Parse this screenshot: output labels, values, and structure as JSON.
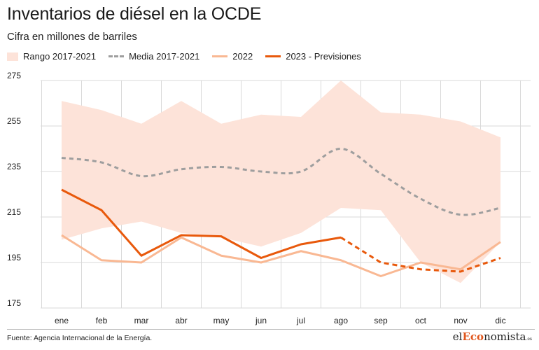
{
  "header": {
    "title": "Inventarios de diésel en la OCDE",
    "subtitle": "Cifra en millones de barriles"
  },
  "legend": {
    "band_label": "Rango 2017-2021",
    "mean_label": "Media 2017-2021",
    "y2022_label": "2022",
    "y2023_label": "2023 - Previsiones"
  },
  "colors": {
    "band": "#fde3d9",
    "mean": "#9e9e9e",
    "y2022": "#f9b893",
    "y2023": "#e8590c",
    "grid": "#d9d9d9",
    "axis": "#555555"
  },
  "footer": {
    "source": "Fuente: Agencia Internacional de la Energía.",
    "logo_pre": "el",
    "logo_hl": "Eco",
    "logo_post": "nomista",
    "logo_suffix": ".es"
  },
  "chart_data": {
    "type": "line",
    "title": "Inventarios de diésel en la OCDE",
    "ylabel": "Cifra en millones de barriles",
    "xlabel": "",
    "categories": [
      "ene",
      "feb",
      "mar",
      "abr",
      "may",
      "jun",
      "jul",
      "ago",
      "sep",
      "oct",
      "nov",
      "dic"
    ],
    "yticks": [
      275,
      255,
      235,
      215,
      195,
      175
    ],
    "ylim": [
      175,
      275
    ],
    "grid": true,
    "legend_position": "top-left",
    "range_band": {
      "name": "Rango 2017-2021",
      "x": [
        0,
        1,
        2,
        3,
        4,
        5,
        6,
        7,
        8,
        9,
        10,
        11
      ],
      "upper": [
        266,
        262,
        256,
        266,
        256,
        260,
        259,
        275,
        261,
        260,
        257,
        250
      ],
      "lower": [
        205,
        210,
        213,
        208,
        206,
        202,
        208,
        219,
        218,
        195,
        186,
        204
      ]
    },
    "series": [
      {
        "name": "Media 2017-2021",
        "style": "dashed",
        "x": [
          0,
          1,
          2,
          3,
          4,
          5,
          6,
          7,
          8,
          9,
          10,
          11
        ],
        "values": [
          241,
          239,
          233,
          236,
          237,
          235,
          235,
          245,
          234,
          223,
          216,
          219
        ]
      },
      {
        "name": "2022",
        "style": "solid",
        "x": [
          0,
          1,
          2,
          3,
          4,
          5,
          6,
          7,
          8,
          9,
          10,
          11
        ],
        "values": [
          207,
          196,
          195,
          206,
          198,
          195,
          200,
          196,
          189,
          195,
          192,
          204
        ]
      },
      {
        "name": "2023",
        "style": "solid",
        "x": [
          0,
          1,
          2,
          3,
          4,
          5,
          6,
          7
        ],
        "values": [
          227,
          218,
          198,
          207,
          206.5,
          197,
          203,
          206
        ]
      },
      {
        "name": "2023 - Previsiones",
        "style": "dashed",
        "x": [
          7,
          8,
          9,
          10,
          11
        ],
        "values": [
          206,
          195,
          192,
          191,
          197
        ]
      }
    ]
  }
}
